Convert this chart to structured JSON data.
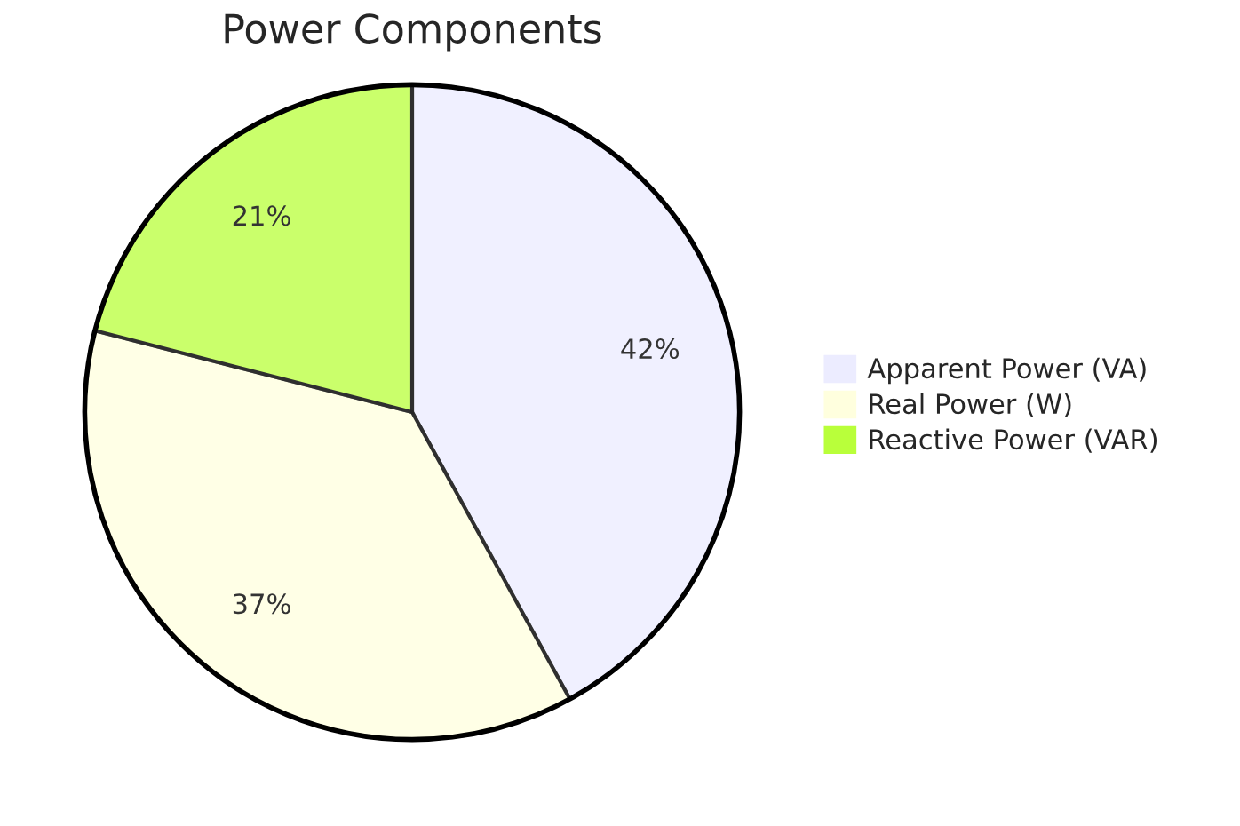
{
  "chart_data": {
    "type": "pie",
    "title": "Power Components",
    "categories": [
      "Apparent Power (VA)",
      "Real Power (W)",
      "Reactive Power (VAR)"
    ],
    "values": [
      42,
      37,
      21
    ],
    "colors": [
      "#ececff",
      "#ffffde",
      "#b9ff3a"
    ],
    "value_labels": [
      "42%",
      "37%",
      "21%"
    ],
    "legend": "right"
  }
}
